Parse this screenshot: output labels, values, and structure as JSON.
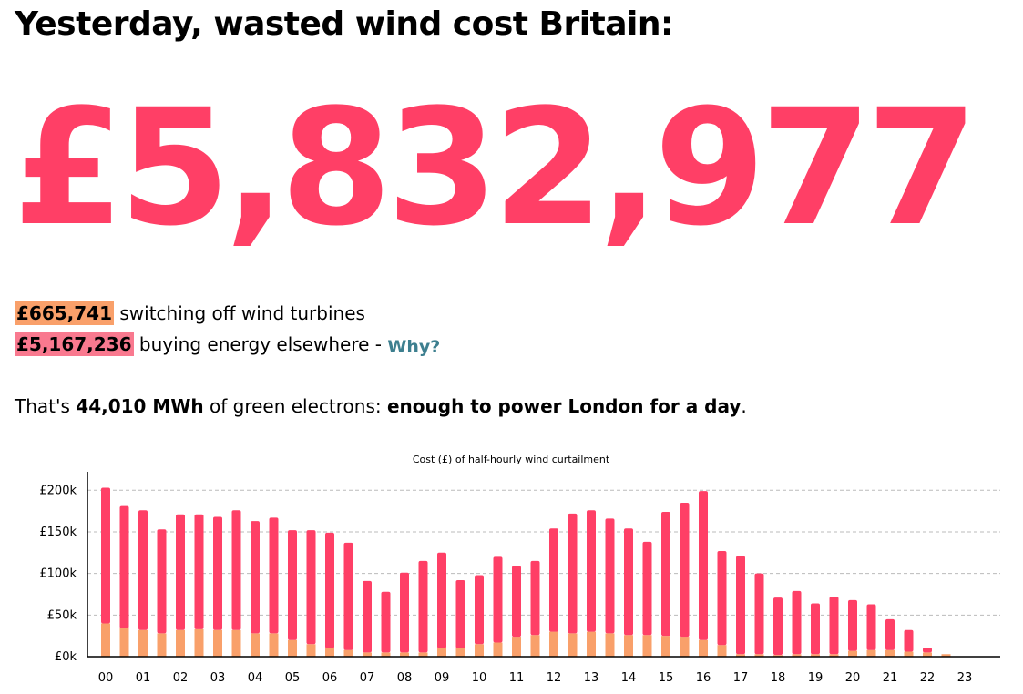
{
  "headline": "Yesterday, wasted wind cost Britain:",
  "total_cost": "£5,832,977",
  "breakdown": {
    "switch_off_amount": "£665,741",
    "switch_off_text": "switching off wind turbines",
    "buy_elsewhere_amount": "£5,167,236",
    "buy_elsewhere_text": "buying energy elsewhere -",
    "why_link": "Why?"
  },
  "summary": {
    "prefix": "That's",
    "mwh": "44,010 MWh",
    "middle": "of green electrons:",
    "emphasis": "enough to power London for a day",
    "suffix": "."
  },
  "colors": {
    "accent": "#ff3f66",
    "turbine_cost": "#f9a06a",
    "energy_cost": "#f9798f",
    "link": "#3d7f8f"
  },
  "chart_data": {
    "type": "bar",
    "stacked": true,
    "title": "Cost (£) of half-hourly wind curtailment",
    "xlabel": "",
    "ylabel": "",
    "ylim": [
      0,
      220000
    ],
    "yticks": [
      0,
      50000,
      100000,
      150000,
      200000
    ],
    "ytick_labels": [
      "£0k",
      "£50k",
      "£100k",
      "£150k",
      "£200k"
    ],
    "xtick_labels": [
      "00",
      "01",
      "02",
      "03",
      "04",
      "05",
      "06",
      "07",
      "08",
      "09",
      "10",
      "11",
      "12",
      "13",
      "14",
      "15",
      "16",
      "17",
      "18",
      "19",
      "20",
      "21",
      "22",
      "23"
    ],
    "grid": true,
    "legend": "none",
    "series": [
      {
        "color": "#f9a06a",
        "values": [
          40000,
          34000,
          32000,
          28000,
          32000,
          33000,
          32000,
          32000,
          28000,
          28000,
          20000,
          15000,
          10000,
          8000,
          5000,
          5000,
          5000,
          5000,
          10000,
          10000,
          15000,
          17000,
          24000,
          26000,
          30000,
          28000,
          30000,
          28000,
          26000,
          26000,
          25000,
          24000,
          20000,
          14000,
          3000,
          3000,
          2000,
          3000,
          3000,
          3000,
          7000,
          8000,
          8000,
          6000,
          5000,
          3000,
          0,
          0
        ]
      },
      {
        "color": "#ff3f66",
        "values": [
          163000,
          147000,
          144000,
          125000,
          139000,
          138000,
          136000,
          144000,
          135000,
          139000,
          132000,
          137000,
          139000,
          129000,
          86000,
          73000,
          96000,
          110000,
          115000,
          82000,
          83000,
          103000,
          85000,
          89000,
          124000,
          144000,
          146000,
          138000,
          128000,
          112000,
          149000,
          161000,
          179000,
          113000,
          118000,
          97000,
          69000,
          76000,
          61000,
          69000,
          61000,
          55000,
          37000,
          26000,
          6000,
          0,
          0,
          0
        ]
      }
    ]
  }
}
